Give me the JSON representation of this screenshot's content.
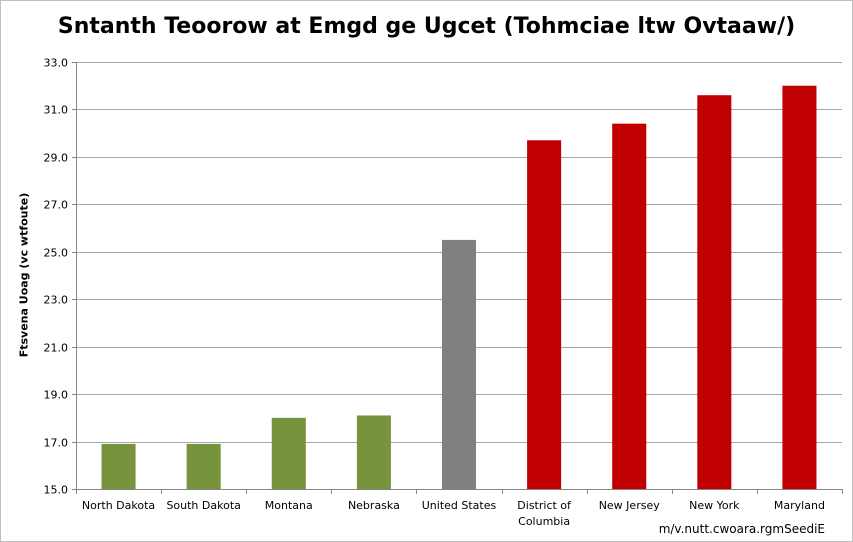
{
  "chart_data": {
    "type": "bar",
    "title": "Sntanth Teoorow at Emgd ge Ugcet (Tohmciae ltw Ovtaaw/)",
    "ylabel": "Ftsvena Uoag  (vc wtfoute)",
    "xlabel": "",
    "ylim": [
      15.0,
      33.0
    ],
    "ytick_step": 2.0,
    "ytick_labels": [
      "15.0",
      "17.0",
      "19.0",
      "21.0",
      "23.0",
      "25.0",
      "27.0",
      "29.0",
      "31.0",
      "33.0"
    ],
    "grid": true,
    "legend": "none",
    "categories": [
      [
        "North Dakota"
      ],
      [
        "South Dakota"
      ],
      [
        "Montana"
      ],
      [
        "Nebraska"
      ],
      [
        "United States"
      ],
      [
        "District of",
        "Columbia"
      ],
      [
        "New Jersey"
      ],
      [
        "New York"
      ],
      [
        "Maryland"
      ]
    ],
    "values": [
      16.9,
      16.9,
      18.0,
      18.1,
      25.5,
      29.7,
      30.4,
      31.6,
      32.0
    ],
    "bar_colors": [
      "#77933c",
      "#77933c",
      "#77933c",
      "#77933c",
      "#808080",
      "#c00000",
      "#c00000",
      "#c00000",
      "#c00000"
    ],
    "source": "m/v.nutt.cwoara.rgmSeediE"
  }
}
